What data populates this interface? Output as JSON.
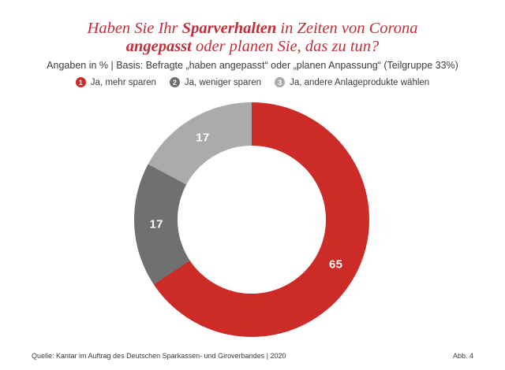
{
  "title": {
    "line1_pre": "Haben Sie Ihr ",
    "line1_bold": "Sparverhalten",
    "line1_post": " in Zeiten von Corona",
    "line2_bold": "angepasst",
    "line2_post": " oder planen Sie, das zu tun?"
  },
  "subtitle": "Angaben in % | Basis: Befragte „haben angepasst“ oder „planen Anpassung“ (Teilgruppe 33%)",
  "legend": {
    "items": [
      {
        "number": "1",
        "label": "Ja, mehr sparen",
        "color": "#cd2b27"
      },
      {
        "number": "2",
        "label": "Ja, weniger sparen",
        "color": "#6e7072"
      },
      {
        "number": "3",
        "label": "Ja, andere Anlageprodukte wählen",
        "color": "#a9abac"
      }
    ]
  },
  "chart_data": {
    "type": "pie",
    "subtype": "donut",
    "title": "Haben Sie Ihr Sparverhalten in Zeiten von Corona angepasst oder planen Sie, das zu tun?",
    "units": "%",
    "categories": [
      "Ja, mehr sparen",
      "Ja, weniger sparen",
      "Ja, andere Anlageprodukte wählen"
    ],
    "values": [
      65,
      17,
      17
    ],
    "colors": [
      "#cd2b27",
      "#6e7072",
      "#a9abac"
    ],
    "start_angle_deg": 0,
    "direction": "clockwise",
    "label_color": "#ffffff",
    "label_radius": 121,
    "legend_position": "top"
  },
  "footer": {
    "source": "Quelle: Kantar im Auftrag des Deutschen Sparkassen- und Giroverbandes | 2020",
    "figure_label": "Abb. 4"
  },
  "colors": {
    "title_red": "#c02f3a",
    "text": "#3c3c3b",
    "background": "#ffffff"
  }
}
